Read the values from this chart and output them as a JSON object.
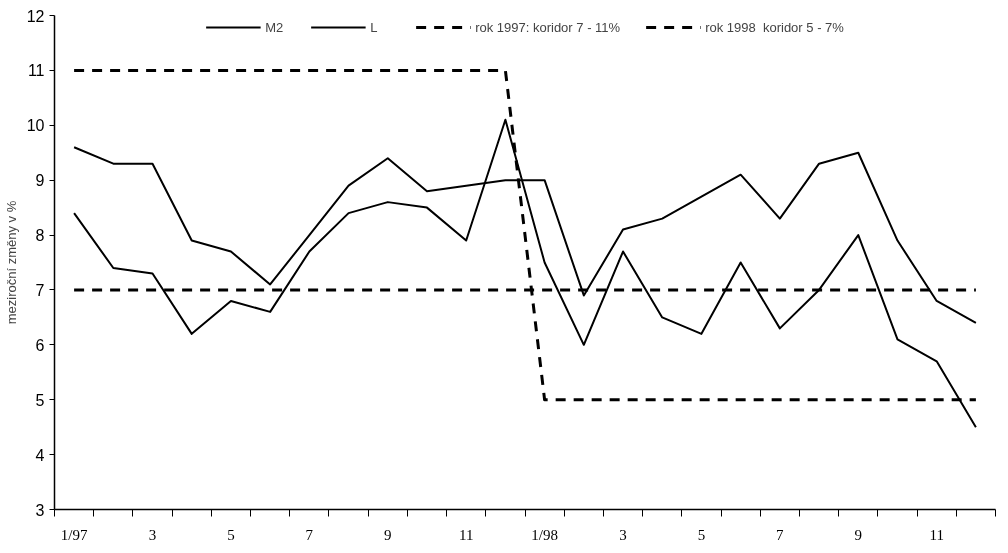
{
  "chart_data": {
    "type": "line",
    "ylabel": "meziroční změny v %",
    "categories": [
      "1/97",
      null,
      "3",
      null,
      "5",
      null,
      "7",
      null,
      "9",
      null,
      "11",
      null,
      "1/98",
      null,
      "3",
      null,
      "5",
      null,
      "7",
      null,
      "9",
      null,
      "11",
      null
    ],
    "series": [
      {
        "name": "M2",
        "color": "#000000",
        "line_style": "solid",
        "values": [
          9.6,
          9.3,
          9.3,
          7.9,
          7.7,
          7.1,
          8.0,
          8.9,
          9.4,
          8.8,
          8.9,
          9.0,
          9.0,
          6.9,
          8.1,
          8.3,
          8.7,
          9.1,
          8.3,
          9.3,
          9.5,
          7.9,
          6.8,
          6.4
        ]
      },
      {
        "name": "L",
        "color": "#000000",
        "line_style": "solid",
        "values": [
          8.4,
          7.4,
          7.3,
          6.2,
          6.8,
          6.6,
          7.7,
          8.4,
          8.6,
          8.5,
          7.9,
          10.1,
          7.5,
          6.0,
          7.7,
          6.5,
          6.2,
          7.5,
          6.3,
          7.0,
          8.0,
          6.1,
          5.7,
          4.5
        ]
      },
      {
        "name": "rok 1997: koridor 7 - 11%",
        "color": "#000000",
        "line_style": "dashed",
        "values": [
          11,
          11,
          11,
          11,
          11,
          11,
          11,
          11,
          11,
          11,
          11,
          11,
          5,
          5,
          5,
          5,
          5,
          5,
          5,
          5,
          5,
          5,
          5,
          5
        ]
      },
      {
        "name": "rok 1998  koridor 5 - 7%",
        "color": "#000000",
        "line_style": "dashed",
        "values": [
          7,
          7,
          7,
          7,
          7,
          7,
          7,
          7,
          7,
          7,
          7,
          7,
          7,
          7,
          7,
          7,
          7,
          7,
          7,
          7,
          7,
          7,
          7,
          7
        ]
      }
    ],
    "ylim": [
      3,
      12
    ],
    "yticks": [
      3,
      4,
      5,
      6,
      7,
      8,
      9,
      10,
      11,
      12
    ],
    "grid": false,
    "legend": "top",
    "marker": "none"
  }
}
